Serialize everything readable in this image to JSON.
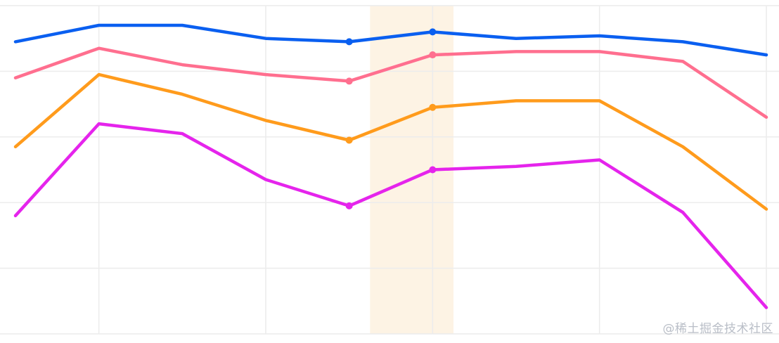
{
  "watermark": "@稀土掘金技术社区",
  "chart_data": {
    "type": "line",
    "x": [
      0,
      1,
      2,
      3,
      4,
      5,
      6,
      7,
      8,
      9
    ],
    "ylim": [
      0,
      5
    ],
    "grid": true,
    "highlight_band": {
      "x": [
        4.25,
        5.25
      ],
      "color": "#fdf3e4"
    },
    "marker_indices": [
      4,
      5
    ],
    "series": [
      {
        "color": "#0a5ff0",
        "values": [
          4.45,
          4.7,
          4.7,
          4.5,
          4.45,
          4.6,
          4.5,
          4.54,
          4.45,
          4.25
        ]
      },
      {
        "color": "#ff6f8f",
        "values": [
          3.9,
          4.35,
          4.1,
          3.95,
          3.85,
          4.25,
          4.3,
          4.3,
          4.15,
          3.3
        ]
      },
      {
        "color": "#ff9b1c",
        "values": [
          2.85,
          3.95,
          3.65,
          3.25,
          2.95,
          3.45,
          3.55,
          3.55,
          2.85,
          1.9
        ]
      },
      {
        "color": "#e524ec",
        "values": [
          1.8,
          3.2,
          3.05,
          2.35,
          1.95,
          2.5,
          2.55,
          2.65,
          1.85,
          0.4
        ]
      }
    ]
  }
}
